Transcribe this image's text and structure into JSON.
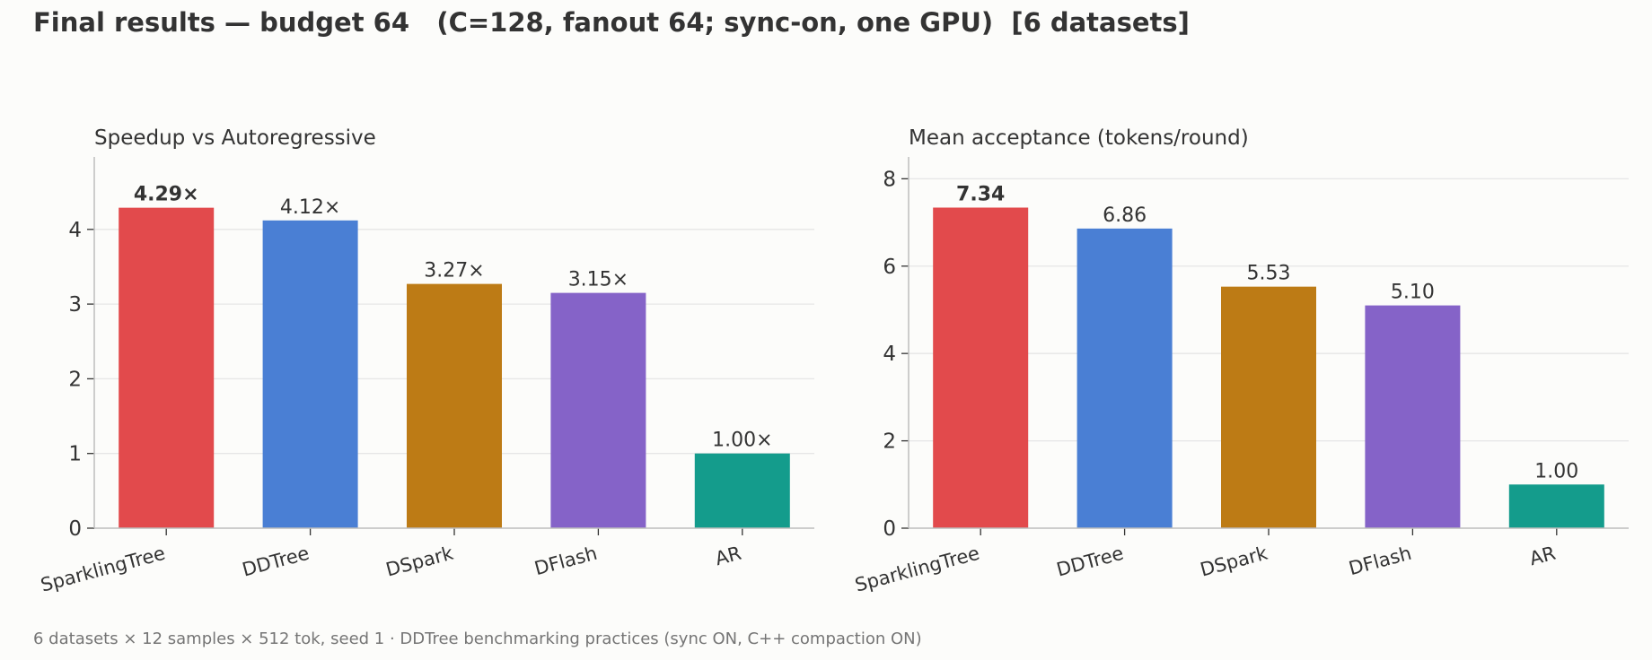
{
  "title": "Final results — budget 64   (C=128, fanout 64; sync-on, one GPU)  [6 datasets]",
  "footer": "6 datasets × 12 samples × 512 tok, seed 1 · DDTree benchmarking practices (sync ON, C++ compaction ON)",
  "colors": {
    "SparklingTree": "#e24a4c",
    "DDTree": "#4a7fd4",
    "DSpark": "#bd7b15",
    "DFlash": "#8563c8",
    "AR": "#149c8c",
    "grid": "#e6e6e6",
    "axis": "#bdbdbd"
  },
  "chart_data": [
    {
      "type": "bar",
      "title": "Speedup vs Autoregressive",
      "categories": [
        "SparklingTree",
        "DDTree",
        "DSpark",
        "DFlash",
        "AR"
      ],
      "values": [
        4.29,
        4.12,
        3.27,
        3.15,
        1.0
      ],
      "value_labels": [
        "4.29×",
        "4.12×",
        "3.27×",
        "3.15×",
        "1.00×"
      ],
      "highlight_index": 0,
      "yticks": [
        0,
        1,
        2,
        3,
        4
      ],
      "ylim": [
        0,
        4.97
      ],
      "grid": true,
      "xlabel": "",
      "ylabel": ""
    },
    {
      "type": "bar",
      "title": "Mean acceptance (tokens/round)",
      "categories": [
        "SparklingTree",
        "DDTree",
        "DSpark",
        "DFlash",
        "AR"
      ],
      "values": [
        7.34,
        6.86,
        5.53,
        5.1,
        1.0
      ],
      "value_labels": [
        "7.34",
        "6.86",
        "5.53",
        "5.10",
        "1.00"
      ],
      "highlight_index": 0,
      "yticks": [
        0,
        2,
        4,
        6,
        8
      ],
      "ylim": [
        0,
        8.5
      ],
      "grid": true,
      "xlabel": "",
      "ylabel": ""
    }
  ]
}
